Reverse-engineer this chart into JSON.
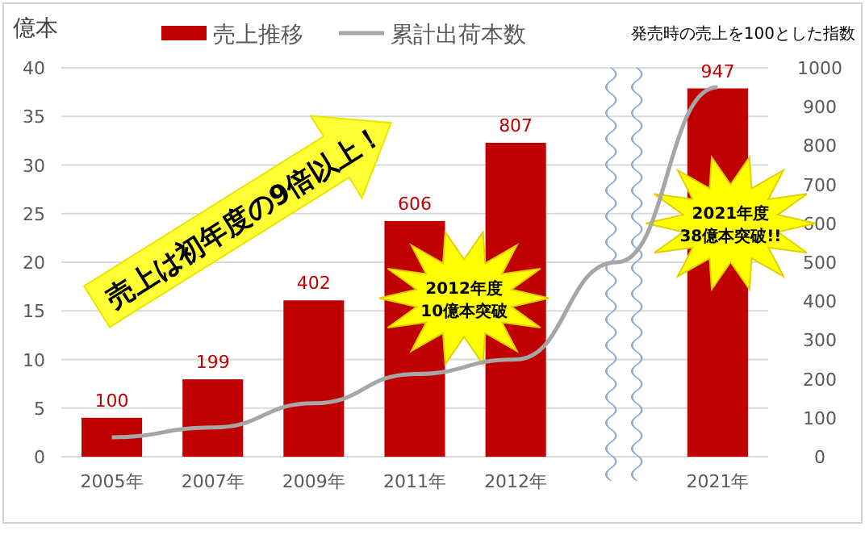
{
  "chart_data": {
    "type": "bar",
    "ylabel": "億本",
    "y2label": "発売時の売上を100とした指数",
    "categories": [
      "2005年",
      "2007年",
      "2009年",
      "2011年",
      "2012年",
      null,
      "2021年"
    ],
    "series": [
      {
        "name": "売上推移",
        "axis": "y2",
        "color": "#c00000",
        "values": [
          100,
          199,
          402,
          606,
          807,
          null,
          947
        ],
        "value_labels": [
          "100",
          "199",
          "402",
          "606",
          "807",
          null,
          "947"
        ]
      },
      {
        "name": "累計出荷本数",
        "type": "line",
        "axis": "y",
        "color": "#a6a6a6",
        "values": [
          2,
          3,
          5.5,
          8.5,
          10,
          20,
          38
        ]
      }
    ],
    "ylim": [
      0,
      40
    ],
    "yticks": [
      0,
      5,
      10,
      15,
      20,
      25,
      30,
      35,
      40
    ],
    "y2lim": [
      0,
      1000
    ],
    "y2ticks": [
      0,
      100,
      200,
      300,
      400,
      500,
      600,
      700,
      800,
      900,
      1000
    ],
    "grid": "y",
    "legend": "top",
    "marker": "none",
    "line_style": "solid",
    "annotations": [
      "売上は初年度の9倍以上！",
      {
        "text": "2012年度\n10億本突破",
        "x": "2012年",
        "y": 10
      },
      "2021年度\n38億本突破!!"
    ]
  }
}
